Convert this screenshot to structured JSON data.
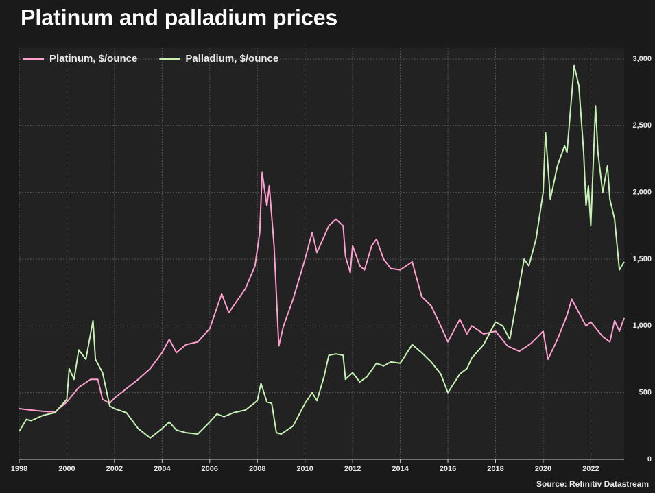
{
  "chart_data": {
    "type": "line",
    "title": "Platinum and palladium prices",
    "source": "Source: Refinitiv Datastream",
    "legend": "top-left",
    "grid": true,
    "xlim": [
      1998,
      2023.4
    ],
    "xticks": [
      1998,
      2000,
      2002,
      2004,
      2006,
      2008,
      2010,
      2012,
      2014,
      2016,
      2018,
      2020,
      2022
    ],
    "ylim": [
      0,
      3000
    ],
    "yticks": [
      0,
      500,
      {
        "value": 1000,
        "label": "1,000"
      },
      {
        "value": 1500,
        "label": "1,500"
      },
      {
        "value": 2000,
        "label": "2,000"
      },
      {
        "value": 2500,
        "label": "2,500"
      },
      {
        "value": 3000,
        "label": "3,000"
      }
    ],
    "series": [
      {
        "name": "Platinum, $/ounce",
        "color": "#ff9fd0",
        "x": [
          1998,
          1998.5,
          1999,
          1999.5,
          2000,
          2000.5,
          2001,
          2001.3,
          2001.5,
          2001.8,
          2002,
          2002.5,
          2003,
          2003.5,
          2004,
          2004.3,
          2004.6,
          2005,
          2005.5,
          2006,
          2006.5,
          2006.8,
          2007,
          2007.5,
          2007.9,
          2008.1,
          2008.2,
          2008.4,
          2008.5,
          2008.7,
          2008.9,
          2009.1,
          2009.5,
          2010,
          2010.3,
          2010.5,
          2011,
          2011.3,
          2011.6,
          2011.7,
          2011.9,
          2012,
          2012.3,
          2012.5,
          2012.8,
          2013,
          2013.3,
          2013.6,
          2014,
          2014.5,
          2014.9,
          2015.3,
          2015.7,
          2016,
          2016.5,
          2016.8,
          2017,
          2017.5,
          2018,
          2018.5,
          2019,
          2019.5,
          2020,
          2020.2,
          2020.6,
          2021,
          2021.2,
          2021.5,
          2021.8,
          2022,
          2022.5,
          2022.8,
          2023,
          2023.2,
          2023.4
        ],
        "values": [
          380,
          370,
          360,
          355,
          430,
          540,
          600,
          600,
          450,
          420,
          460,
          530,
          600,
          680,
          800,
          900,
          800,
          860,
          880,
          980,
          1240,
          1100,
          1150,
          1280,
          1450,
          1700,
          2150,
          1900,
          2050,
          1600,
          850,
          1000,
          1200,
          1500,
          1700,
          1550,
          1750,
          1800,
          1750,
          1520,
          1400,
          1600,
          1450,
          1420,
          1600,
          1650,
          1500,
          1430,
          1420,
          1480,
          1220,
          1150,
          1000,
          880,
          1050,
          940,
          1000,
          940,
          960,
          850,
          810,
          870,
          960,
          750,
          900,
          1080,
          1200,
          1100,
          1000,
          1030,
          920,
          880,
          1040,
          960,
          1060
        ]
      },
      {
        "name": "Palladium, $/ounce",
        "color": "#c6f2b4",
        "x": [
          1998,
          1998.3,
          1998.5,
          1999,
          1999.5,
          2000,
          2000.1,
          2000.3,
          2000.5,
          2000.8,
          2001.1,
          2001.2,
          2001.5,
          2001.8,
          2002,
          2002.5,
          2003,
          2003.5,
          2004,
          2004.3,
          2004.6,
          2005,
          2005.5,
          2006,
          2006.3,
          2006.6,
          2007,
          2007.5,
          2008,
          2008.15,
          2008.4,
          2008.6,
          2008.8,
          2009,
          2009.5,
          2010,
          2010.3,
          2010.5,
          2010.8,
          2011,
          2011.3,
          2011.6,
          2011.7,
          2012,
          2012.3,
          2012.6,
          2013,
          2013.3,
          2013.6,
          2014,
          2014.5,
          2014.9,
          2015.3,
          2015.7,
          2016,
          2016.5,
          2016.8,
          2017,
          2017.5,
          2018,
          2018.3,
          2018.6,
          2019,
          2019.2,
          2019.4,
          2019.7,
          2020,
          2020.1,
          2020.3,
          2020.6,
          2020.9,
          2021,
          2021.3,
          2021.5,
          2021.7,
          2021.8,
          2021.9,
          2022,
          2022.2,
          2022.3,
          2022.5,
          2022.7,
          2022.8,
          2023,
          2023.2,
          2023.4
        ],
        "values": [
          210,
          300,
          290,
          330,
          350,
          450,
          680,
          600,
          820,
          750,
          1040,
          750,
          650,
          400,
          380,
          350,
          230,
          160,
          230,
          280,
          220,
          200,
          190,
          280,
          340,
          320,
          350,
          370,
          440,
          570,
          430,
          420,
          200,
          190,
          250,
          420,
          500,
          440,
          620,
          780,
          790,
          780,
          600,
          650,
          580,
          620,
          720,
          700,
          730,
          720,
          860,
          800,
          730,
          640,
          500,
          640,
          680,
          760,
          860,
          1030,
          1000,
          900,
          1300,
          1500,
          1450,
          1650,
          2000,
          2450,
          1950,
          2200,
          2350,
          2300,
          2950,
          2800,
          2300,
          1900,
          2050,
          1750,
          2650,
          2300,
          2000,
          2200,
          1950,
          1800,
          1420,
          1480
        ]
      }
    ]
  }
}
